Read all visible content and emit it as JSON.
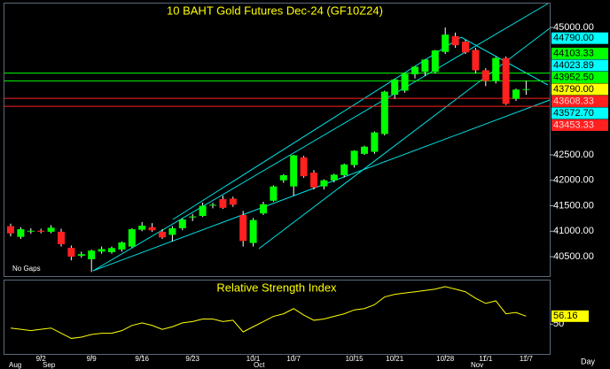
{
  "chart_data": [
    {
      "type": "candlestick",
      "title": "10 BAHT Gold Futures Dec-24 (GF10Z24)",
      "annotation": "No Gaps",
      "x_unit": "Day",
      "up_color": "#00ff00",
      "down_color": "#ff2020",
      "categories": [
        null,
        null,
        null,
        "9/2",
        null,
        null,
        null,
        null,
        "9/9",
        null,
        null,
        null,
        null,
        "9/16",
        null,
        null,
        null,
        null,
        "9/23",
        null,
        null,
        null,
        null,
        null,
        "10/1",
        null,
        null,
        null,
        "10/7",
        null,
        null,
        null,
        null,
        null,
        "10/15",
        null,
        null,
        null,
        "10/21",
        null,
        null,
        null,
        null,
        "10/28",
        null,
        null,
        null,
        "11/1",
        null,
        null,
        null,
        "11/7"
      ],
      "months": [
        "Aug",
        "Sep",
        "Oct",
        "Nov"
      ],
      "open": [
        41100,
        40890,
        41000,
        41010,
        40990,
        40990,
        40675,
        40520,
        40450,
        40600,
        40590,
        40640,
        40700,
        41030,
        41080,
        40990,
        40930,
        41060,
        41270,
        41300,
        41510,
        41630,
        41640,
        41320,
        40770,
        41350,
        41600,
        42000,
        41880,
        42450,
        42150,
        41880,
        42000,
        42100,
        42300,
        42520,
        42560,
        42910,
        43680,
        43760,
        44080,
        44130,
        44130,
        44520,
        44830,
        44720,
        44560,
        44160,
        43950,
        44400,
        43600,
        43790
      ],
      "high": [
        41150,
        41080,
        41060,
        41050,
        41120,
        41050,
        40720,
        40600,
        40640,
        40700,
        40700,
        40800,
        41060,
        41180,
        41160,
        41040,
        41100,
        41250,
        41340,
        41560,
        41560,
        41700,
        41680,
        41400,
        41260,
        41580,
        41900,
        42120,
        42500,
        42480,
        42200,
        42020,
        42130,
        42330,
        42590,
        42680,
        42960,
        43760,
        43990,
        44100,
        44240,
        44380,
        44560,
        45000,
        44900,
        44760,
        44600,
        44200,
        44420,
        44430,
        43800,
        43950
      ],
      "low": [
        40900,
        40850,
        40950,
        40960,
        40960,
        40700,
        40430,
        40480,
        40200,
        40560,
        40560,
        40600,
        40680,
        41000,
        40990,
        40850,
        40800,
        41020,
        41200,
        41280,
        41450,
        41440,
        41480,
        40700,
        40700,
        41320,
        41580,
        41950,
        41700,
        42050,
        41820,
        41820,
        41960,
        42060,
        42250,
        42500,
        42520,
        42880,
        43600,
        43720,
        44000,
        44050,
        44100,
        44480,
        44600,
        44480,
        44100,
        43850,
        43900,
        43480,
        43560,
        43680
      ],
      "close": [
        40960,
        41040,
        41010,
        40990,
        41070,
        40745,
        40500,
        40550,
        40620,
        40650,
        40670,
        40780,
        41040,
        41110,
        41020,
        40880,
        41060,
        41230,
        41290,
        41500,
        41520,
        41460,
        41520,
        40810,
        41220,
        41530,
        41880,
        42100,
        42490,
        42080,
        41860,
        42000,
        42110,
        42310,
        42580,
        42660,
        42940,
        43740,
        43980,
        44090,
        44230,
        44370,
        44550,
        44860,
        44650,
        44510,
        44160,
        43950,
        44400,
        43500,
        43780,
        43790
      ],
      "ylim": [
        40120,
        45470
      ],
      "yticks": [
        {
          "value": 45000,
          "label": "45000.00"
        },
        {
          "value": 42500,
          "label": "42500.00"
        },
        {
          "value": 42000,
          "label": "42000.00"
        },
        {
          "value": 41500,
          "label": "41500.00"
        },
        {
          "value": 41000,
          "label": "41000.00"
        },
        {
          "value": 40500,
          "label": "40500.00"
        }
      ],
      "levels": [
        {
          "value": 44790,
          "label": "44790.00",
          "color": "#00ffff",
          "line": false
        },
        {
          "value": 44103.33,
          "label": "44103.33",
          "color": "#00ff00",
          "line": true
        },
        {
          "value": 44023.89,
          "label": "44023.89",
          "color": "#00ffff",
          "line": false
        },
        {
          "value": 43952.5,
          "label": "43952.50",
          "color": "#00ff00",
          "line": true
        },
        {
          "value": 43790,
          "label": "43790.00",
          "color": "#ffff00",
          "line": false
        },
        {
          "value": 43608.33,
          "label": "43608.33",
          "color": "#ff2020",
          "line": true
        },
        {
          "value": 43572.7,
          "label": "43572.70",
          "color": "#00ffff",
          "line": false
        },
        {
          "value": 43453.33,
          "label": "43453.33",
          "color": "#ff2020",
          "line": true
        }
      ]
    },
    {
      "type": "line",
      "title": "Relative Strength Index",
      "color": "#ffff00",
      "values": [
        47,
        46,
        45,
        46,
        47,
        43,
        39,
        40,
        42,
        43,
        43,
        45,
        49,
        51,
        49,
        46,
        48,
        51,
        52,
        54,
        54,
        52,
        53,
        44,
        48,
        52,
        56,
        58,
        62,
        57,
        53,
        54,
        56,
        58,
        61,
        62,
        65,
        71,
        73,
        74,
        75,
        76,
        77,
        79,
        77,
        75,
        70,
        66,
        68,
        58,
        59,
        56.16
      ],
      "ylim": [
        27,
        83
      ],
      "yticks": [
        50
      ]
    }
  ]
}
